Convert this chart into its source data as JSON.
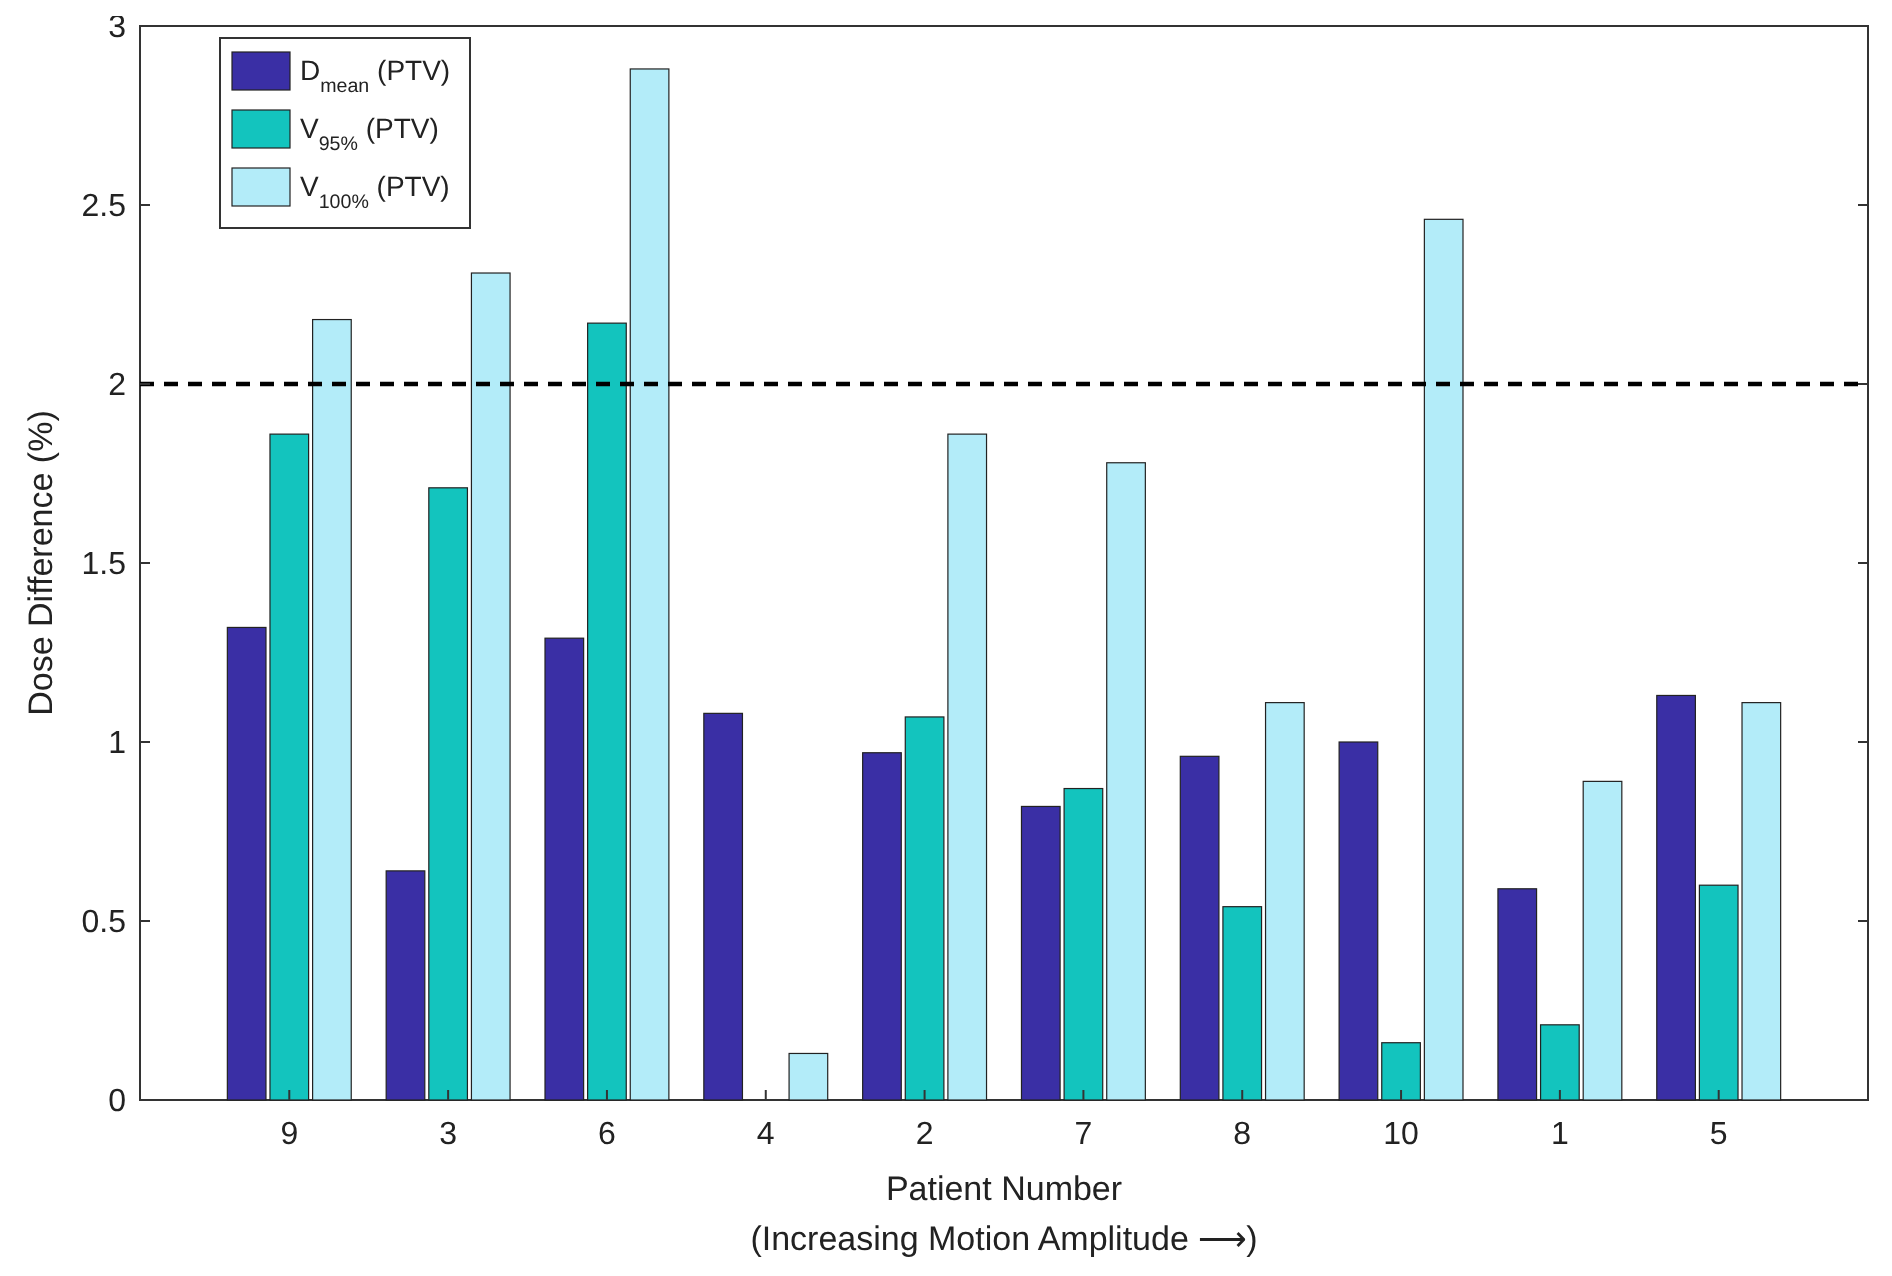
{
  "chart_data": {
    "type": "bar",
    "ylabel": "Dose Difference (%)",
    "xlabel": "Patient Number\n(Increasing Motion Amplitude ⟶)",
    "categories": [
      "9",
      "3",
      "6",
      "4",
      "2",
      "7",
      "8",
      "10",
      "1",
      "5"
    ],
    "series": [
      {
        "name": "D$_{mean}$ (PTV)",
        "color": "#3a2fa5",
        "values": [
          1.32,
          0.64,
          1.29,
          1.08,
          0.97,
          0.82,
          0.96,
          1.0,
          0.59,
          1.13
        ]
      },
      {
        "name": "V$_{95%}$ (PTV)",
        "color": "#13c4be",
        "values": [
          1.86,
          1.71,
          2.17,
          0,
          1.07,
          0.87,
          0.54,
          0.16,
          0.21,
          0.6
        ]
      },
      {
        "name": "V$_{100%}$ (PTV)",
        "color": "#b3ecf9",
        "values": [
          2.18,
          2.31,
          2.88,
          0.13,
          1.86,
          1.78,
          1.11,
          2.46,
          0.89,
          1.11
        ]
      }
    ],
    "ylim": [
      0,
      3
    ],
    "yticks": [
      0,
      0.5,
      1,
      1.5,
      2,
      2.5,
      3
    ],
    "ref_lines": [
      {
        "axis": "y",
        "value": 2,
        "color": "#000000",
        "line_style": "dashed"
      }
    ],
    "legend": "top left"
  }
}
